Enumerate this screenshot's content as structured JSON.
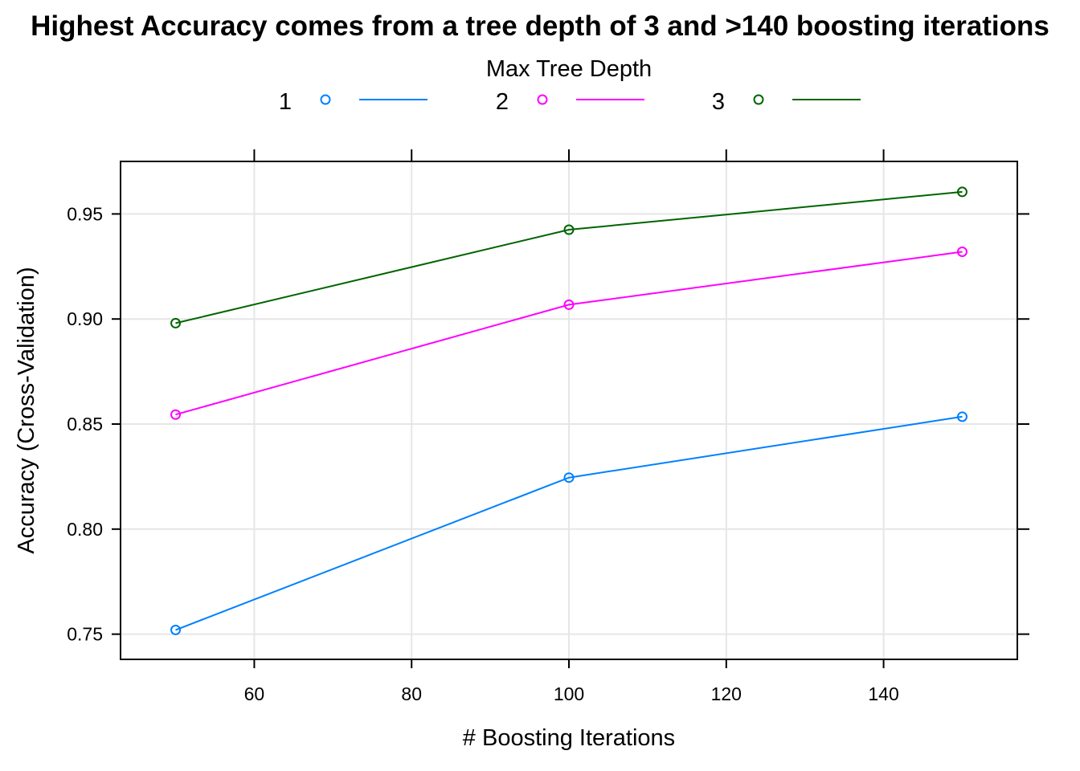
{
  "chart_data": {
    "type": "line",
    "title": "Highest Accuracy comes from a tree depth of 3 and >140 boosting iterations",
    "xlabel": "# Boosting Iterations",
    "ylabel": "Accuracy (Cross-Validation)",
    "legend": {
      "title": "Max Tree Depth",
      "placement": "top"
    },
    "x": [
      50,
      100,
      150
    ],
    "xlim": [
      43,
      157
    ],
    "ylim": [
      0.738,
      0.975
    ],
    "xticks": [
      60,
      80,
      100,
      120,
      140
    ],
    "yticks": [
      0.75,
      0.8,
      0.85,
      0.9,
      0.95
    ],
    "xtick_labels": [
      "60",
      "80",
      "100",
      "120",
      "140"
    ],
    "ytick_labels": [
      "0.75",
      "0.80",
      "0.85",
      "0.90",
      "0.95"
    ],
    "grid": true,
    "series": [
      {
        "name": "1",
        "color": "#0080ff",
        "values": [
          0.752,
          0.8245,
          0.8535
        ]
      },
      {
        "name": "2",
        "color": "#ff00ff",
        "values": [
          0.8545,
          0.9068,
          0.932
        ]
      },
      {
        "name": "3",
        "color": "#006400",
        "values": [
          0.898,
          0.9425,
          0.9605
        ]
      }
    ]
  }
}
